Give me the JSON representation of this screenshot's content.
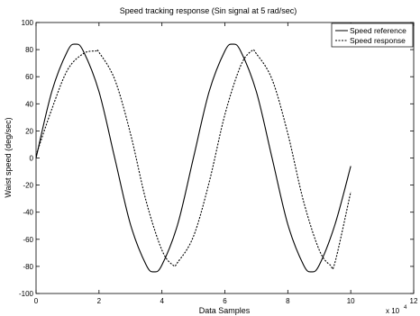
{
  "chart_data": {
    "type": "line",
    "title": "Speed tracking response (Sin signal at 5 rad/sec)",
    "xlabel": "Data Samples",
    "ylabel": "Waist speed (deg/sec)",
    "x_exponent_label": "x 10",
    "x_exponent_power": "4",
    "xlim": [
      0,
      12
    ],
    "ylim": [
      -100,
      100
    ],
    "xticks": [
      0,
      2,
      4,
      6,
      8,
      10,
      12
    ],
    "xtick_labels": [
      "0",
      "2",
      "4",
      "6",
      "8",
      "10",
      "12"
    ],
    "yticks": [
      -100,
      -80,
      -60,
      -40,
      -20,
      0,
      20,
      40,
      60,
      80,
      100
    ],
    "ytick_labels": [
      "-100",
      "-80",
      "-60",
      "-40",
      "-20",
      "0",
      "20",
      "40",
      "60",
      "80",
      "100"
    ],
    "grid": false,
    "legend_position": "top-right",
    "series": [
      {
        "name": "Speed reference",
        "style": "solid",
        "color": "#000000",
        "x": [
          0,
          0.5,
          1.0,
          1.25,
          1.5,
          2.0,
          2.5,
          3.0,
          3.5,
          3.75,
          4.0,
          4.5,
          5.0,
          5.5,
          6.0,
          6.25,
          6.5,
          7.0,
          7.5,
          8.0,
          8.5,
          8.75,
          9.0,
          9.5,
          10.0
        ],
        "values": [
          0,
          49,
          79,
          84,
          79,
          49,
          0,
          -49,
          -79,
          -84,
          -79,
          -49,
          0,
          49,
          79,
          84,
          79,
          49,
          0,
          -49,
          -79,
          -84,
          -79,
          -49,
          -6
        ]
      },
      {
        "name": "Speed response",
        "style": "dashed",
        "color": "#000000",
        "x": [
          0,
          0.5,
          1.0,
          1.5,
          1.9,
          2.0,
          2.5,
          3.0,
          3.5,
          4.0,
          4.35,
          4.5,
          5.0,
          5.5,
          6.0,
          6.5,
          6.85,
          7.0,
          7.5,
          8.0,
          8.5,
          9.0,
          9.35,
          9.5,
          10.0
        ],
        "values": [
          2,
          36,
          65,
          77,
          79,
          78,
          58,
          18,
          -32,
          -68,
          -79,
          -77,
          -58,
          -18,
          32,
          68,
          79,
          77,
          58,
          18,
          -32,
          -68,
          -79,
          -77,
          -25
        ]
      }
    ]
  }
}
